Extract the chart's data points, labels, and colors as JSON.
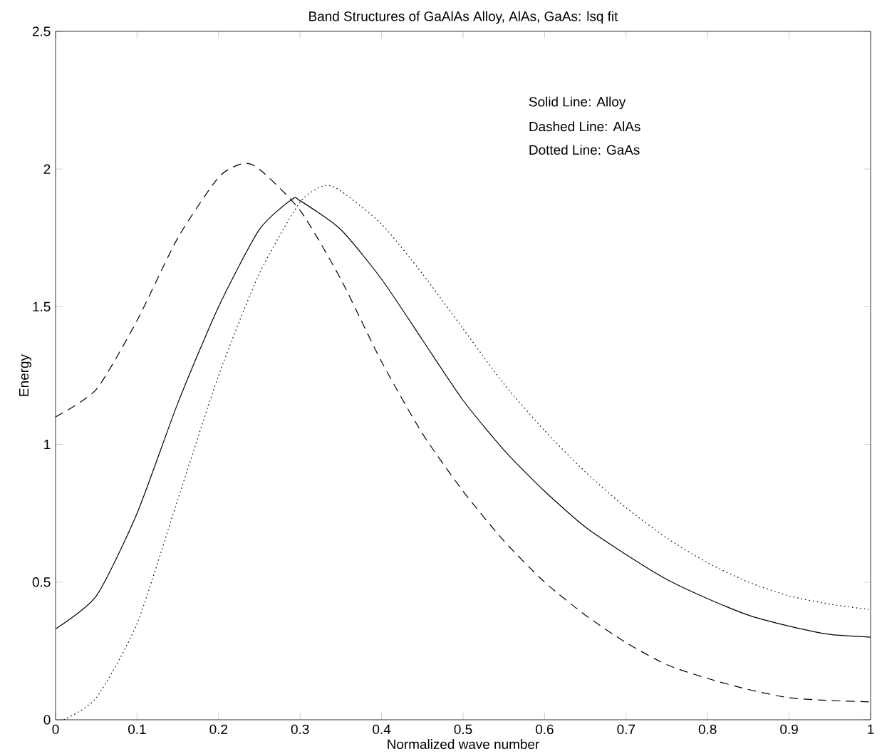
{
  "chart_data": {
    "type": "line",
    "title": "Band Structures of GaAlAs Alloy, AlAs, GaAs: lsq fit",
    "xlabel": "Normalized wave number",
    "ylabel": "Energy",
    "annotations": [
      "Solid  Line:  Alloy",
      "Dashed Line:  AlAs",
      "Dotted Line:  GaAs"
    ],
    "xlim": [
      0,
      1
    ],
    "ylim": [
      0,
      2.5
    ],
    "xticks": [
      0,
      0.1,
      0.2,
      0.3,
      0.4,
      0.5,
      0.6,
      0.7,
      0.8,
      0.9,
      1
    ],
    "yticks": [
      0,
      0.5,
      1,
      1.5,
      2,
      2.5
    ],
    "grid": false,
    "marker": "none",
    "series": [
      {
        "color": "#000000",
        "line_style": "solid",
        "x": [
          0,
          0.05,
          0.1,
          0.15,
          0.2,
          0.25,
          0.29,
          0.3,
          0.35,
          0.4,
          0.45,
          0.5,
          0.55,
          0.6,
          0.65,
          0.7,
          0.75,
          0.8,
          0.85,
          0.9,
          0.95,
          1
        ],
        "values": [
          0.33,
          0.45,
          0.75,
          1.15,
          1.5,
          1.78,
          1.89,
          1.885,
          1.78,
          1.6,
          1.38,
          1.16,
          0.98,
          0.83,
          0.7,
          0.6,
          0.51,
          0.44,
          0.38,
          0.34,
          0.31,
          0.3
        ]
      },
      {
        "color": "#000000",
        "line_style": "dashed",
        "x": [
          0,
          0.05,
          0.1,
          0.15,
          0.2,
          0.23,
          0.25,
          0.3,
          0.35,
          0.4,
          0.45,
          0.5,
          0.55,
          0.6,
          0.65,
          0.7,
          0.75,
          0.8,
          0.85,
          0.9,
          0.95,
          1
        ],
        "values": [
          1.1,
          1.2,
          1.45,
          1.75,
          1.97,
          2.02,
          2.0,
          1.85,
          1.6,
          1.3,
          1.04,
          0.83,
          0.65,
          0.5,
          0.38,
          0.28,
          0.2,
          0.15,
          0.11,
          0.08,
          0.07,
          0.065
        ]
      },
      {
        "color": "#000000",
        "line_style": "dotted",
        "x": [
          0.01,
          0.05,
          0.1,
          0.15,
          0.2,
          0.25,
          0.3,
          0.33,
          0.35,
          0.4,
          0.45,
          0.5,
          0.55,
          0.6,
          0.65,
          0.7,
          0.75,
          0.8,
          0.85,
          0.9,
          0.95,
          1
        ],
        "values": [
          0,
          0.08,
          0.35,
          0.8,
          1.25,
          1.62,
          1.88,
          1.94,
          1.92,
          1.8,
          1.62,
          1.42,
          1.22,
          1.05,
          0.9,
          0.77,
          0.66,
          0.57,
          0.5,
          0.45,
          0.42,
          0.4
        ]
      }
    ]
  }
}
